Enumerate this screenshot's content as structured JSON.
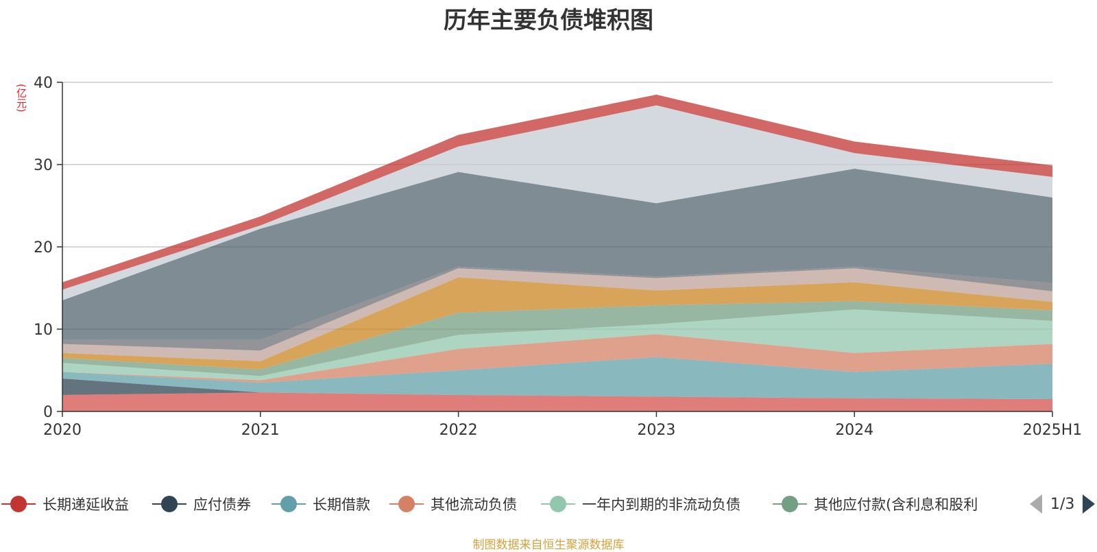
{
  "chart_data": {
    "type": "area",
    "title": "历年主要负债堆积图",
    "unit": "(亿元)",
    "categories": [
      "2020",
      "2021",
      "2022",
      "2023",
      "2024",
      "2025H1"
    ],
    "ylim": [
      0,
      40
    ],
    "yticks": [
      0,
      10,
      20,
      30,
      40
    ],
    "grid": true,
    "stacked": true,
    "legend_position": "bottom",
    "series": [
      {
        "name": "长期递延收益",
        "color": "#d4514f",
        "values": [
          2.0,
          2.3,
          2.0,
          1.8,
          1.6,
          1.5
        ]
      },
      {
        "name": "应付债券",
        "color": "#2f4554",
        "values": [
          2.0,
          0.0,
          0.0,
          0.0,
          0.0,
          0.0
        ]
      },
      {
        "name": "长期借款",
        "color": "#61a0a8",
        "values": [
          0.8,
          1.2,
          3.0,
          4.8,
          3.2,
          4.3
        ]
      },
      {
        "name": "其他流动负债",
        "color": "#d48265",
        "values": [
          0.0,
          0.3,
          2.6,
          2.8,
          2.3,
          2.4
        ]
      },
      {
        "name": "一年内到期的非流动负债",
        "color": "#91c7ae",
        "values": [
          1.1,
          0.5,
          1.7,
          1.2,
          5.3,
          2.8
        ]
      },
      {
        "name": "其他应付款(含利息和股利)",
        "color": "#749f83",
        "values": [
          0.6,
          0.8,
          2.7,
          2.3,
          1.0,
          1.3
        ]
      },
      {
        "name": "",
        "color": "#ca8622",
        "values": [
          0.6,
          1.0,
          4.3,
          1.8,
          2.3,
          1.0
        ]
      },
      {
        "name": "",
        "color": "#bda29a",
        "values": [
          1.1,
          1.3,
          1.1,
          1.5,
          1.7,
          1.3
        ]
      },
      {
        "name": "",
        "color": "#6e7074",
        "values": [
          0.5,
          1.3,
          0.2,
          0.2,
          0.2,
          1.0
        ]
      },
      {
        "name": "",
        "color": "#546570",
        "values": [
          4.8,
          13.5,
          11.5,
          8.9,
          11.9,
          10.4
        ]
      },
      {
        "name": "",
        "color": "#c4ccd3",
        "values": [
          1.3,
          0.4,
          3.1,
          11.9,
          1.9,
          2.5
        ]
      },
      {
        "name": "",
        "color": "#c23531",
        "values": [
          0.9,
          1.1,
          1.4,
          1.3,
          1.4,
          1.4
        ]
      }
    ]
  },
  "legend": {
    "page_text": "1/3",
    "items": [
      "长期递延收益",
      "应付债券",
      "长期借款",
      "其他流动负债",
      "一年内到期的非流动负债",
      "其他应付款(含利息和股利"
    ]
  },
  "source_note": "制图数据来自恒生聚源数据库"
}
